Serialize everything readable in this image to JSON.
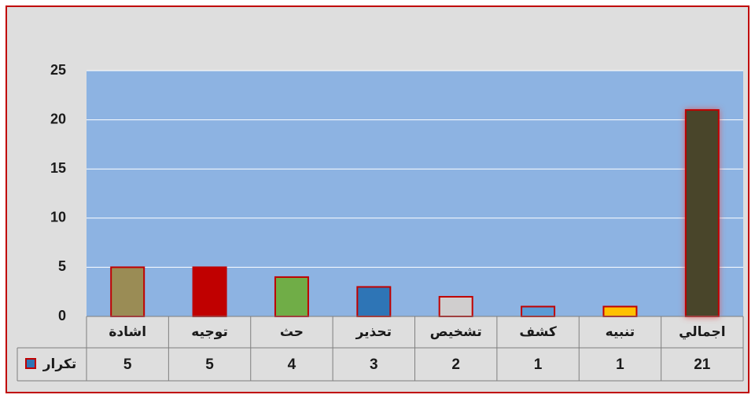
{
  "chart_data": {
    "type": "bar",
    "categories": [
      "اشادة",
      "توجيه",
      "حث",
      "تحذير",
      "تشخيص",
      "كشف",
      "تنبيه",
      "اجمالي"
    ],
    "series": [
      {
        "name": "تكرار",
        "color": "#2e75b6",
        "values": [
          5,
          5,
          4,
          3,
          2,
          1,
          1,
          21
        ],
        "colors": [
          "#9a8c55",
          "#c00000",
          "#70ad47",
          "#2e75b6",
          "#d0cece",
          "#5b9bd5",
          "#ffc000",
          "#4a4529"
        ]
      }
    ],
    "ylim": [
      0,
      25
    ],
    "yticks": [
      0,
      5,
      10,
      15,
      20,
      25
    ],
    "grid": true,
    "data_table": true
  }
}
